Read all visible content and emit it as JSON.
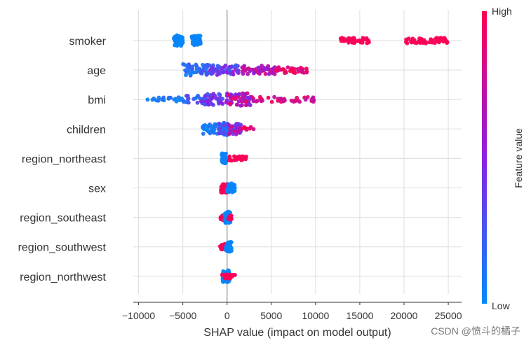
{
  "chart_data": {
    "type": "scatter",
    "subtype": "shap-beeswarm",
    "title": "",
    "xlabel": "SHAP value (impact on model output)",
    "xlim": [
      -10600,
      26500
    ],
    "xticks": [
      -10000,
      -5000,
      0,
      5000,
      10000,
      15000,
      20000,
      25000
    ],
    "xtick_labels": [
      "−10000",
      "−5000",
      "0",
      "5000",
      "10000",
      "15000",
      "20000",
      "25000"
    ],
    "features": [
      {
        "name": "smoker",
        "clusters": [
          {
            "from": -6000,
            "to": -5000,
            "n": 60,
            "fmin": 0.0,
            "fmax": 0.05,
            "spread": 0.38
          },
          {
            "from": -4000,
            "to": -3000,
            "n": 50,
            "fmin": 0.0,
            "fmax": 0.05,
            "spread": 0.36
          },
          {
            "from": 12800,
            "to": 16100,
            "n": 40,
            "fmin": 0.95,
            "fmax": 1.0,
            "spread": 0.2
          },
          {
            "from": 20200,
            "to": 24900,
            "n": 50,
            "fmin": 0.95,
            "fmax": 1.0,
            "spread": 0.2
          }
        ]
      },
      {
        "name": "age",
        "clusters": [
          {
            "from": -5000,
            "to": -2000,
            "n": 45,
            "fmin": 0.0,
            "fmax": 0.3,
            "spread": 0.42
          },
          {
            "from": -2000,
            "to": 1500,
            "n": 55,
            "fmin": 0.2,
            "fmax": 0.6,
            "spread": 0.35
          },
          {
            "from": 1500,
            "to": 5500,
            "n": 50,
            "fmin": 0.5,
            "fmax": 0.85,
            "spread": 0.32
          },
          {
            "from": 5500,
            "to": 9200,
            "n": 40,
            "fmin": 0.8,
            "fmax": 1.0,
            "spread": 0.22
          }
        ]
      },
      {
        "name": "bmi",
        "clusters": [
          {
            "from": -9000,
            "to": -5000,
            "n": 18,
            "fmin": 0.0,
            "fmax": 0.15,
            "spread": 0.15
          },
          {
            "from": -5000,
            "to": -2000,
            "n": 25,
            "fmin": 0.1,
            "fmax": 0.4,
            "spread": 0.28
          },
          {
            "from": -3000,
            "to": 0,
            "n": 45,
            "fmin": 0.15,
            "fmax": 0.6,
            "spread": 0.4
          },
          {
            "from": 0,
            "to": 3000,
            "n": 60,
            "fmin": 0.4,
            "fmax": 1.0,
            "spread": 0.45
          },
          {
            "from": 3000,
            "to": 10000,
            "n": 35,
            "fmin": 0.7,
            "fmax": 1.0,
            "spread": 0.18
          }
        ]
      },
      {
        "name": "children",
        "clusters": [
          {
            "from": -2800,
            "to": -500,
            "n": 30,
            "fmin": 0.0,
            "fmax": 0.15,
            "spread": 0.35
          },
          {
            "from": -1000,
            "to": 200,
            "n": 45,
            "fmin": 0.0,
            "fmax": 0.4,
            "spread": 0.45
          },
          {
            "from": 200,
            "to": 1700,
            "n": 40,
            "fmin": 0.3,
            "fmax": 0.85,
            "spread": 0.38
          },
          {
            "from": 1700,
            "to": 3000,
            "n": 10,
            "fmin": 0.8,
            "fmax": 1.0,
            "spread": 0.15
          }
        ]
      },
      {
        "name": "region_northeast",
        "clusters": [
          {
            "from": -600,
            "to": -100,
            "n": 40,
            "fmin": 0.0,
            "fmax": 0.05,
            "spread": 0.35
          },
          {
            "from": 100,
            "to": 2200,
            "n": 35,
            "fmin": 0.95,
            "fmax": 1.0,
            "spread": 0.16
          }
        ]
      },
      {
        "name": "sex",
        "clusters": [
          {
            "from": -700,
            "to": 0,
            "n": 35,
            "fmin": 0.95,
            "fmax": 1.0,
            "spread": 0.35
          },
          {
            "from": -100,
            "to": 900,
            "n": 35,
            "fmin": 0.0,
            "fmax": 0.05,
            "spread": 0.32
          }
        ]
      },
      {
        "name": "region_southeast",
        "clusters": [
          {
            "from": -800,
            "to": -100,
            "n": 20,
            "fmin": 0.95,
            "fmax": 1.0,
            "spread": 0.2
          },
          {
            "from": -300,
            "to": 400,
            "n": 40,
            "fmin": 0.0,
            "fmax": 0.05,
            "spread": 0.42
          },
          {
            "from": 100,
            "to": 500,
            "n": 12,
            "fmin": 0.95,
            "fmax": 1.0,
            "spread": 0.15
          }
        ]
      },
      {
        "name": "region_southwest",
        "clusters": [
          {
            "from": -800,
            "to": 0,
            "n": 30,
            "fmin": 0.95,
            "fmax": 1.0,
            "spread": 0.2
          },
          {
            "from": -200,
            "to": 600,
            "n": 35,
            "fmin": 0.0,
            "fmax": 0.05,
            "spread": 0.35
          }
        ]
      },
      {
        "name": "region_northwest",
        "clusters": [
          {
            "from": -500,
            "to": 300,
            "n": 45,
            "fmin": 0.0,
            "fmax": 0.05,
            "spread": 0.45
          },
          {
            "from": -600,
            "to": 900,
            "n": 20,
            "fmin": 0.95,
            "fmax": 1.0,
            "spread": 0.16
          }
        ]
      }
    ],
    "colorbar": {
      "label": "Feature value",
      "high_label": "High",
      "low_label": "Low",
      "low_color": "#008bfb",
      "mid_color": "#8a20e6",
      "high_color": "#ff0051"
    },
    "grid": true,
    "zero_line": true
  },
  "watermark": "CSDN @愤斗的橘子"
}
